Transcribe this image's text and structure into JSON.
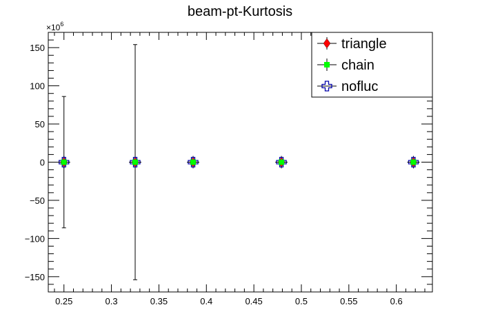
{
  "chart_data": {
    "type": "scatter",
    "title": "beam-pt-Kurtosis",
    "xlabel": "",
    "ylabel": "",
    "y_multiplier_label": "×10",
    "y_multiplier_exp": "6",
    "xlim": [
      0.2335,
      0.638
    ],
    "ylim": [
      -170,
      170
    ],
    "x_ticks": [
      0.25,
      0.3,
      0.35,
      0.4,
      0.45,
      0.5,
      0.55,
      0.6
    ],
    "x_tick_labels": [
      "0.25",
      "0.3",
      "0.35",
      "0.4",
      "0.45",
      "0.5",
      "0.55",
      "0.6"
    ],
    "y_ticks": [
      -150,
      -100,
      -50,
      0,
      50,
      100,
      150
    ],
    "y_tick_labels": [
      "−150",
      "−100",
      "−50",
      "0",
      "50",
      "100",
      "150"
    ],
    "legend_position": "top-right",
    "grid": false,
    "series": [
      {
        "name": "triangle",
        "marker": "diamond",
        "color": "#ff0000",
        "x": [
          0.25,
          0.325,
          0.386,
          0.479,
          0.618
        ],
        "y": [
          0,
          0,
          0,
          0,
          0
        ],
        "yerr": [
          86,
          154,
          0,
          0,
          0
        ]
      },
      {
        "name": "chain",
        "marker": "square",
        "color": "#00ff00",
        "x": [
          0.25,
          0.325,
          0.386,
          0.479,
          0.618
        ],
        "y": [
          0,
          0,
          0,
          0,
          0
        ],
        "yerr": [
          0,
          0,
          0,
          0,
          0
        ]
      },
      {
        "name": "nofluc",
        "marker": "open-cross",
        "color": "#0000aa",
        "x": [
          0.25,
          0.325,
          0.386,
          0.479,
          0.618
        ],
        "y": [
          0,
          0,
          0,
          0,
          0
        ],
        "yerr": [
          0,
          0,
          0,
          0,
          0
        ]
      }
    ]
  }
}
